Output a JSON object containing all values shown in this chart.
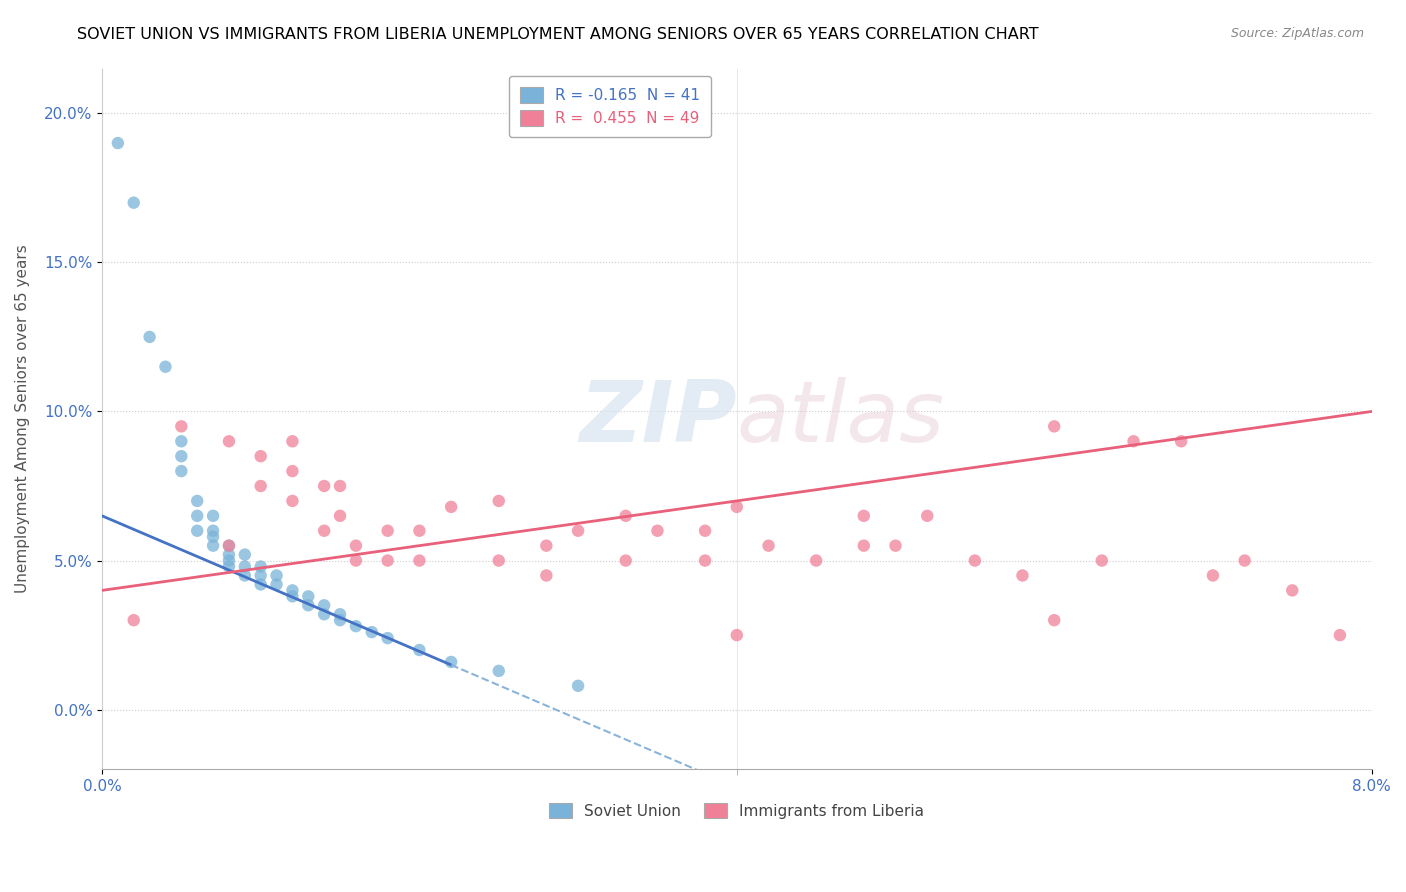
{
  "title": "SOVIET UNION VS IMMIGRANTS FROM LIBERIA UNEMPLOYMENT AMONG SENIORS OVER 65 YEARS CORRELATION CHART",
  "source": "Source: ZipAtlas.com",
  "ylabel": "Unemployment Among Seniors over 65 years",
  "xlim": [
    0.0,
    0.08
  ],
  "ylim": [
    -0.02,
    0.215
  ],
  "yticks": [
    0.0,
    0.05,
    0.1,
    0.15,
    0.2
  ],
  "ytick_labels": [
    "0.0%",
    "5.0%",
    "10.0%",
    "15.0%",
    "20.0%"
  ],
  "watermark": "ZIPatlas",
  "legend_entries": [
    {
      "label": "R = -0.165  N = 41",
      "color": "#a8c4e0"
    },
    {
      "label": "R =  0.455  N = 49",
      "color": "#f4a0b0"
    }
  ],
  "legend_labels": [
    "Soviet Union",
    "Immigrants from Liberia"
  ],
  "soviet_color": "#7ab3d9",
  "liberia_color": "#f08098",
  "soviet_line_color": "#4472c4",
  "liberia_line_color": "#e8607a",
  "soviet_trend_dashed_color": "#8ab4d9",
  "soviet_x": [
    0.001,
    0.002,
    0.003,
    0.004,
    0.005,
    0.005,
    0.005,
    0.006,
    0.006,
    0.006,
    0.007,
    0.007,
    0.007,
    0.007,
    0.008,
    0.008,
    0.008,
    0.008,
    0.009,
    0.009,
    0.009,
    0.01,
    0.01,
    0.01,
    0.011,
    0.011,
    0.012,
    0.012,
    0.013,
    0.013,
    0.014,
    0.014,
    0.015,
    0.015,
    0.016,
    0.017,
    0.018,
    0.02,
    0.022,
    0.025,
    0.03
  ],
  "soviet_y": [
    0.19,
    0.17,
    0.125,
    0.115,
    0.09,
    0.085,
    0.08,
    0.07,
    0.065,
    0.06,
    0.065,
    0.06,
    0.058,
    0.055,
    0.055,
    0.052,
    0.05,
    0.048,
    0.052,
    0.048,
    0.045,
    0.048,
    0.045,
    0.042,
    0.045,
    0.042,
    0.04,
    0.038,
    0.038,
    0.035,
    0.035,
    0.032,
    0.032,
    0.03,
    0.028,
    0.026,
    0.024,
    0.02,
    0.016,
    0.013,
    0.008
  ],
  "liberia_x": [
    0.002,
    0.005,
    0.008,
    0.008,
    0.01,
    0.01,
    0.012,
    0.012,
    0.012,
    0.014,
    0.014,
    0.015,
    0.015,
    0.016,
    0.016,
    0.018,
    0.018,
    0.02,
    0.02,
    0.022,
    0.025,
    0.025,
    0.028,
    0.028,
    0.03,
    0.033,
    0.033,
    0.035,
    0.038,
    0.038,
    0.04,
    0.042,
    0.045,
    0.048,
    0.048,
    0.05,
    0.052,
    0.055,
    0.058,
    0.06,
    0.063,
    0.065,
    0.068,
    0.07,
    0.072,
    0.075,
    0.078,
    0.04,
    0.06
  ],
  "liberia_y": [
    0.03,
    0.095,
    0.09,
    0.055,
    0.085,
    0.075,
    0.09,
    0.08,
    0.07,
    0.075,
    0.06,
    0.075,
    0.065,
    0.055,
    0.05,
    0.06,
    0.05,
    0.06,
    0.05,
    0.068,
    0.07,
    0.05,
    0.055,
    0.045,
    0.06,
    0.065,
    0.05,
    0.06,
    0.06,
    0.05,
    0.068,
    0.055,
    0.05,
    0.065,
    0.055,
    0.055,
    0.065,
    0.05,
    0.045,
    0.095,
    0.05,
    0.09,
    0.09,
    0.045,
    0.05,
    0.04,
    0.025,
    0.025,
    0.03
  ]
}
